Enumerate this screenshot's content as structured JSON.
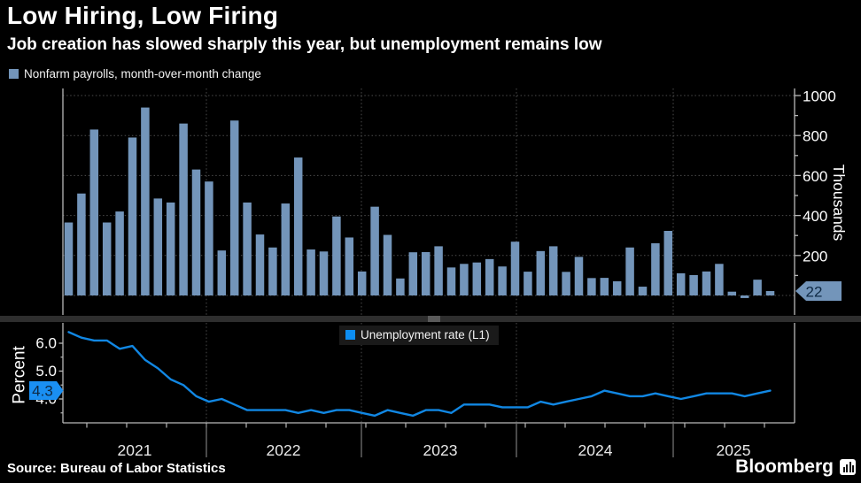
{
  "header": {
    "title": "Low Hiring, Low Firing",
    "subtitle": "Job creation has slowed sharply this year, but unemployment remains low"
  },
  "footer": {
    "source_label": "Source: Bureau of Labor Statistics",
    "brand_label": "Bloomberg"
  },
  "colors": {
    "background": "#000000",
    "bar_fill": "#7395ba",
    "line_stroke": "#1187e3",
    "line_swatch": "#0d8ef2",
    "grid": "#4d4d4d",
    "axis": "#b8b8b8",
    "tick_text": "#ffffff",
    "year_text": "#e8e8e8",
    "divider": "#7a7a7a",
    "bar_tag_bg": "#7395ba",
    "line_tag_bg": "#1a8ff2",
    "tag_text": "#0e2944",
    "separator": "#2e2e2e",
    "separator_handle": "#5a5a5a",
    "legend_bg": "#1a1a1a"
  },
  "xaxis": {
    "year_labels": [
      "2021",
      "2022",
      "2023",
      "2024",
      "2025"
    ]
  },
  "chart_data": [
    {
      "type": "bar",
      "name": "Nonfarm payrolls, month-over-month change",
      "ylabel": "Thousands",
      "x_start": "2021-01",
      "x_end": "2025-08",
      "x_freq": "monthly",
      "yticks": [
        200,
        400,
        600,
        800,
        1000
      ],
      "ytick_labels": [
        "200",
        "400",
        "600",
        "800",
        "1000"
      ],
      "ylim": [
        -60,
        1035
      ],
      "grid": "dotted",
      "legend_position": "top-left",
      "last_value_label": "22",
      "values": [
        365,
        510,
        830,
        365,
        420,
        790,
        940,
        485,
        465,
        860,
        630,
        570,
        225,
        875,
        465,
        305,
        240,
        460,
        690,
        230,
        220,
        395,
        290,
        120,
        444,
        303,
        85,
        216,
        217,
        246,
        140,
        158,
        165,
        182,
        145,
        269,
        119,
        222,
        246,
        118,
        193,
        87,
        88,
        71,
        240,
        44,
        261,
        323,
        111,
        102,
        120,
        158,
        19,
        -13,
        79,
        22
      ]
    },
    {
      "type": "line",
      "name": "Unemployment rate (L1)",
      "ylabel": "Percent",
      "x_start": "2021-01",
      "x_end": "2025-08",
      "x_freq": "monthly",
      "yticks": [
        4.0,
        5.0,
        6.0
      ],
      "ytick_labels": [
        "4.0",
        "5.0",
        "6.0"
      ],
      "ylim": [
        3.1,
        6.6
      ],
      "grid": "dotted-vertical-only",
      "legend_position": "top-center",
      "last_value_label": "4.3",
      "values": [
        6.4,
        6.2,
        6.1,
        6.1,
        5.8,
        5.9,
        5.4,
        5.1,
        4.7,
        4.5,
        4.1,
        3.9,
        4.0,
        3.8,
        3.6,
        3.6,
        3.6,
        3.6,
        3.5,
        3.6,
        3.5,
        3.6,
        3.6,
        3.5,
        3.4,
        3.6,
        3.5,
        3.4,
        3.6,
        3.6,
        3.5,
        3.8,
        3.8,
        3.8,
        3.7,
        3.7,
        3.7,
        3.9,
        3.8,
        3.9,
        4.0,
        4.1,
        4.3,
        4.2,
        4.1,
        4.1,
        4.2,
        4.1,
        4.0,
        4.1,
        4.2,
        4.2,
        4.2,
        4.1,
        4.2,
        4.3
      ]
    }
  ]
}
